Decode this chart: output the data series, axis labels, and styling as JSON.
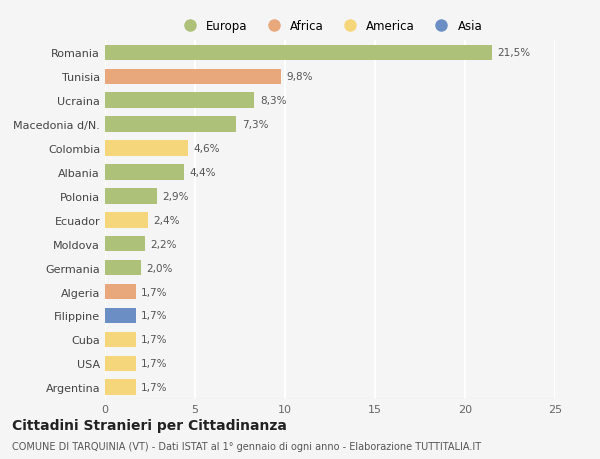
{
  "countries": [
    "Romania",
    "Tunisia",
    "Ucraina",
    "Macedonia d/N.",
    "Colombia",
    "Albania",
    "Polonia",
    "Ecuador",
    "Moldova",
    "Germania",
    "Algeria",
    "Filippine",
    "Cuba",
    "USA",
    "Argentina"
  ],
  "values": [
    21.5,
    9.8,
    8.3,
    7.3,
    4.6,
    4.4,
    2.9,
    2.4,
    2.2,
    2.0,
    1.7,
    1.7,
    1.7,
    1.7,
    1.7
  ],
  "labels": [
    "21,5%",
    "9,8%",
    "8,3%",
    "7,3%",
    "4,6%",
    "4,4%",
    "2,9%",
    "2,4%",
    "2,2%",
    "2,0%",
    "1,7%",
    "1,7%",
    "1,7%",
    "1,7%",
    "1,7%"
  ],
  "categories": [
    "Europa",
    "Africa",
    "America",
    "Asia"
  ],
  "bar_colors": [
    "#adc178",
    "#e8a87c",
    "#adc178",
    "#adc178",
    "#f5d67a",
    "#adc178",
    "#adc178",
    "#f5d67a",
    "#adc178",
    "#adc178",
    "#e8a87c",
    "#6b8ec5",
    "#f5d67a",
    "#f5d67a",
    "#f5d67a"
  ],
  "legend_colors": [
    "#adc178",
    "#e8a87c",
    "#f5d67a",
    "#6b8ec5"
  ],
  "title": "Cittadini Stranieri per Cittadinanza",
  "subtitle": "COMUNE DI TARQUINIA (VT) - Dati ISTAT al 1° gennaio di ogni anno - Elaborazione TUTTITALIA.IT",
  "xlim": [
    0,
    25
  ],
  "xticks": [
    0,
    5,
    10,
    15,
    20,
    25
  ],
  "background_color": "#f5f5f5",
  "grid_color": "#ffffff",
  "bar_height": 0.65,
  "label_fontsize": 7.5,
  "tick_fontsize": 8,
  "title_fontsize": 10,
  "subtitle_fontsize": 7
}
